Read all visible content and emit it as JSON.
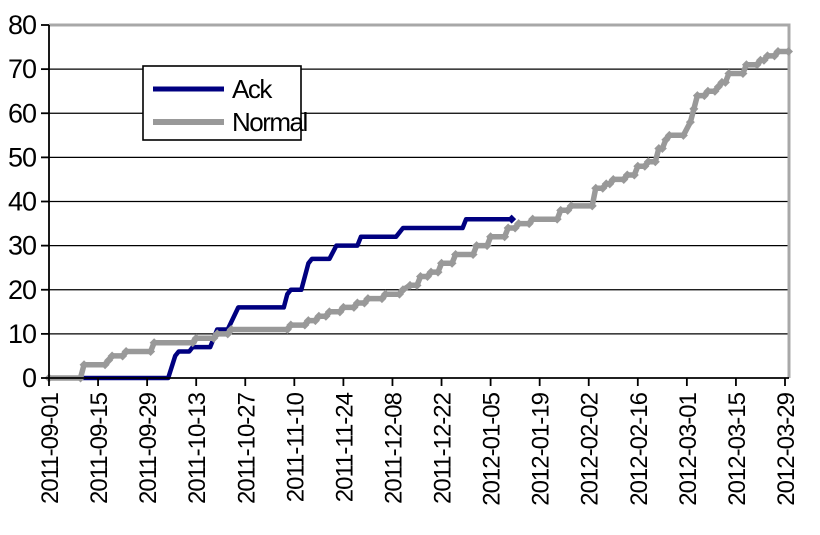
{
  "chart_data": {
    "type": "line",
    "title": "",
    "xlabel": "",
    "ylabel": "",
    "x_unit": "days since 2011-09-01",
    "ylim": [
      0,
      80
    ],
    "xlim_days": [
      0,
      211.5
    ],
    "grid": "horizontal",
    "y_ticks": [
      0,
      10,
      20,
      30,
      40,
      50,
      60,
      70,
      80
    ],
    "x_tick_interval_days": 14,
    "x_tick_days": [
      0,
      14,
      28,
      42,
      56,
      70,
      84,
      98,
      112,
      126,
      140,
      154,
      168,
      182,
      196,
      210
    ],
    "x_tick_labels": [
      "2011-09-01",
      "2011-09-15",
      "2011-09-29",
      "2011-10-13",
      "2011-10-27",
      "2011-11-10",
      "2011-11-24",
      "2011-12-08",
      "2011-12-22",
      "2012-01-05",
      "2012-01-19",
      "2012-02-02",
      "2012-02-16",
      "2012-03-01",
      "2012-03-15",
      "2012-03-29"
    ],
    "legend": {
      "position": "top-left-inset",
      "border_color": "#000000",
      "background": "#ffffff"
    },
    "colors": {
      "ack": "#000080",
      "normal": "#999999",
      "gridline": "#000000",
      "plot_border": "#a8a8a8",
      "axis": "#000000"
    },
    "series": [
      {
        "name": "Ack",
        "color": "#000080",
        "stroke_width": 4.5,
        "markers": false,
        "end_marker": true,
        "points": [
          [
            0,
            0
          ],
          [
            34,
            0
          ],
          [
            36,
            5
          ],
          [
            37,
            6
          ],
          [
            40,
            6
          ],
          [
            41,
            7
          ],
          [
            46,
            7
          ],
          [
            48,
            11
          ],
          [
            51,
            11
          ],
          [
            54,
            16
          ],
          [
            67,
            16
          ],
          [
            68,
            19
          ],
          [
            69,
            20
          ],
          [
            72,
            20
          ],
          [
            74,
            26
          ],
          [
            75,
            27
          ],
          [
            80,
            27
          ],
          [
            82,
            30
          ],
          [
            88,
            30
          ],
          [
            89,
            32
          ],
          [
            99,
            32
          ],
          [
            101,
            34
          ],
          [
            118,
            34
          ],
          [
            119,
            36
          ],
          [
            132,
            36
          ]
        ]
      },
      {
        "name": "Normal",
        "color": "#999999",
        "stroke_width": 5.5,
        "markers": true,
        "end_marker": false,
        "points": [
          [
            0,
            0
          ],
          [
            9,
            0
          ],
          [
            10,
            3
          ],
          [
            16,
            3
          ],
          [
            17,
            4
          ],
          [
            18,
            5
          ],
          [
            21,
            5
          ],
          [
            22,
            6
          ],
          [
            29,
            6
          ],
          [
            30,
            8
          ],
          [
            41,
            8
          ],
          [
            42,
            9
          ],
          [
            47,
            9
          ],
          [
            48,
            10
          ],
          [
            51,
            10
          ],
          [
            52,
            11
          ],
          [
            68,
            11
          ],
          [
            69,
            12
          ],
          [
            73,
            12
          ],
          [
            74,
            13
          ],
          [
            76,
            13
          ],
          [
            77,
            14
          ],
          [
            79,
            14
          ],
          [
            80,
            15
          ],
          [
            83,
            15
          ],
          [
            84,
            16
          ],
          [
            87,
            16
          ],
          [
            88,
            17
          ],
          [
            90,
            17
          ],
          [
            91,
            18
          ],
          [
            95,
            18
          ],
          [
            96,
            19
          ],
          [
            100,
            19
          ],
          [
            101,
            20
          ],
          [
            103,
            21
          ],
          [
            105,
            21
          ],
          [
            106,
            23
          ],
          [
            108,
            23
          ],
          [
            109,
            24
          ],
          [
            111,
            24
          ],
          [
            112,
            26
          ],
          [
            115,
            26
          ],
          [
            116,
            28
          ],
          [
            121,
            28
          ],
          [
            122,
            30
          ],
          [
            125,
            30
          ],
          [
            126,
            32
          ],
          [
            130,
            32
          ],
          [
            131,
            34
          ],
          [
            133,
            34
          ],
          [
            134,
            35
          ],
          [
            137,
            35
          ],
          [
            138,
            36
          ],
          [
            145,
            36
          ],
          [
            146,
            38
          ],
          [
            148,
            38
          ],
          [
            149,
            39
          ],
          [
            155,
            39
          ],
          [
            156,
            43
          ],
          [
            158,
            43
          ],
          [
            159,
            44
          ],
          [
            160,
            44
          ],
          [
            161,
            45
          ],
          [
            164,
            45
          ],
          [
            165,
            46
          ],
          [
            167,
            46
          ],
          [
            168,
            48
          ],
          [
            170,
            48
          ],
          [
            171,
            49
          ],
          [
            173,
            49
          ],
          [
            174,
            52
          ],
          [
            175,
            52
          ],
          [
            176,
            54
          ],
          [
            177,
            55
          ],
          [
            181,
            55
          ],
          [
            183,
            58
          ],
          [
            184,
            61
          ],
          [
            185,
            64
          ],
          [
            187,
            64
          ],
          [
            188,
            65
          ],
          [
            190,
            65
          ],
          [
            191,
            66
          ],
          [
            192,
            67
          ],
          [
            193,
            67
          ],
          [
            194,
            69
          ],
          [
            198,
            69
          ],
          [
            199,
            71
          ],
          [
            202,
            71
          ],
          [
            203,
            72
          ],
          [
            204,
            72
          ],
          [
            205,
            73
          ],
          [
            207,
            73
          ],
          [
            208,
            74
          ],
          [
            211,
            74
          ]
        ]
      }
    ]
  }
}
